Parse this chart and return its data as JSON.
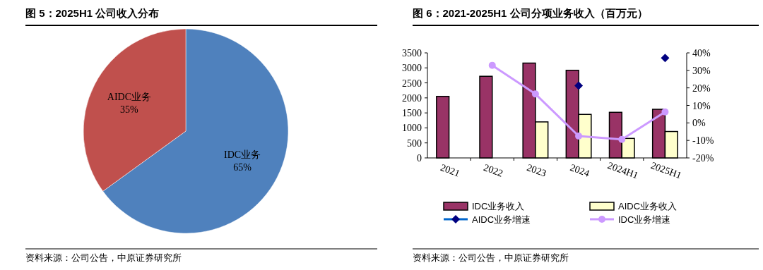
{
  "chart_data": [
    {
      "type": "pie",
      "title": "图 5：2025H1 公司收入分布",
      "categories": [
        "IDC业务",
        "AIDC业务"
      ],
      "values": [
        65,
        35
      ],
      "colors": [
        "#4f81bd",
        "#c0504d"
      ],
      "value_labels": [
        "65%",
        "35%"
      ],
      "annotations": [
        "资料来源：公司公告，中原证券研究所"
      ]
    },
    {
      "type": "bar",
      "title": "图 6：2021-2025H1 公司分项业务收入（百万元）",
      "categories": [
        "2021",
        "2022",
        "2023",
        "2024",
        "2024H1",
        "2025H1"
      ],
      "series": [
        {
          "name": "IDC业务收入",
          "type": "bar",
          "color": "#993366",
          "values": [
            2050,
            2720,
            3160,
            2920,
            1520,
            1620
          ]
        },
        {
          "name": "AIDC业务收入",
          "type": "bar",
          "color": "#ffffcc",
          "values": [
            null,
            null,
            1200,
            1450,
            650,
            880
          ]
        },
        {
          "name": "AIDC业务增速",
          "type": "scatter",
          "axis": "y2",
          "marker": "diamond",
          "color": "#000080",
          "values": [
            null,
            null,
            null,
            21.3,
            null,
            37.1
          ]
        },
        {
          "name": "IDC业务增速",
          "type": "line",
          "axis": "y2",
          "marker": "circle",
          "color": "#cc99ff",
          "values": [
            null,
            32.9,
            16.5,
            -7.5,
            -9.4,
            6.3
          ]
        }
      ],
      "ylim": [
        0,
        3500
      ],
      "yticks": [
        0,
        500,
        1000,
        1500,
        2000,
        2500,
        3000,
        3500
      ],
      "y2lim": [
        -20,
        40
      ],
      "y2ticks": [
        {
          "value": -20,
          "label": "-20%"
        },
        {
          "value": -10,
          "label": "-10%"
        },
        {
          "value": 0,
          "label": "0%"
        },
        {
          "value": 10,
          "label": "10%"
        },
        {
          "value": 20,
          "label": "20%"
        },
        {
          "value": 30,
          "label": "30%"
        },
        {
          "value": 40,
          "label": "40%"
        }
      ],
      "legend": "bottom",
      "annotations": [
        "资料来源：公司公告，中原证券研究所"
      ]
    }
  ]
}
